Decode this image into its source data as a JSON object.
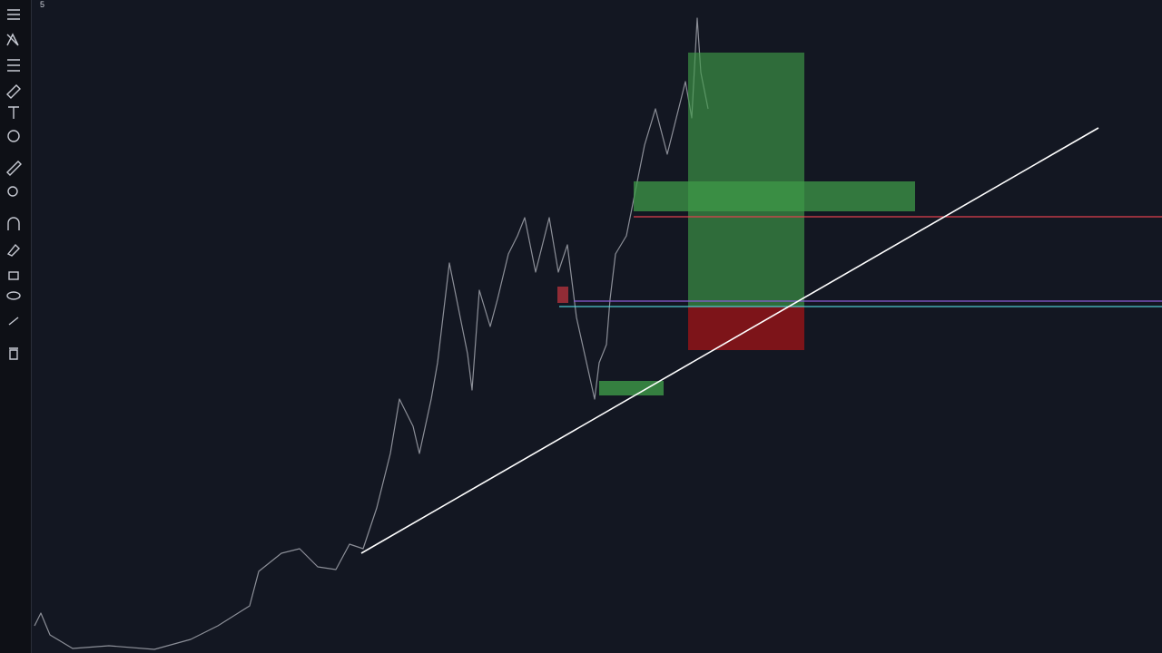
{
  "chart_header": {
    "interval": "5"
  }
}
